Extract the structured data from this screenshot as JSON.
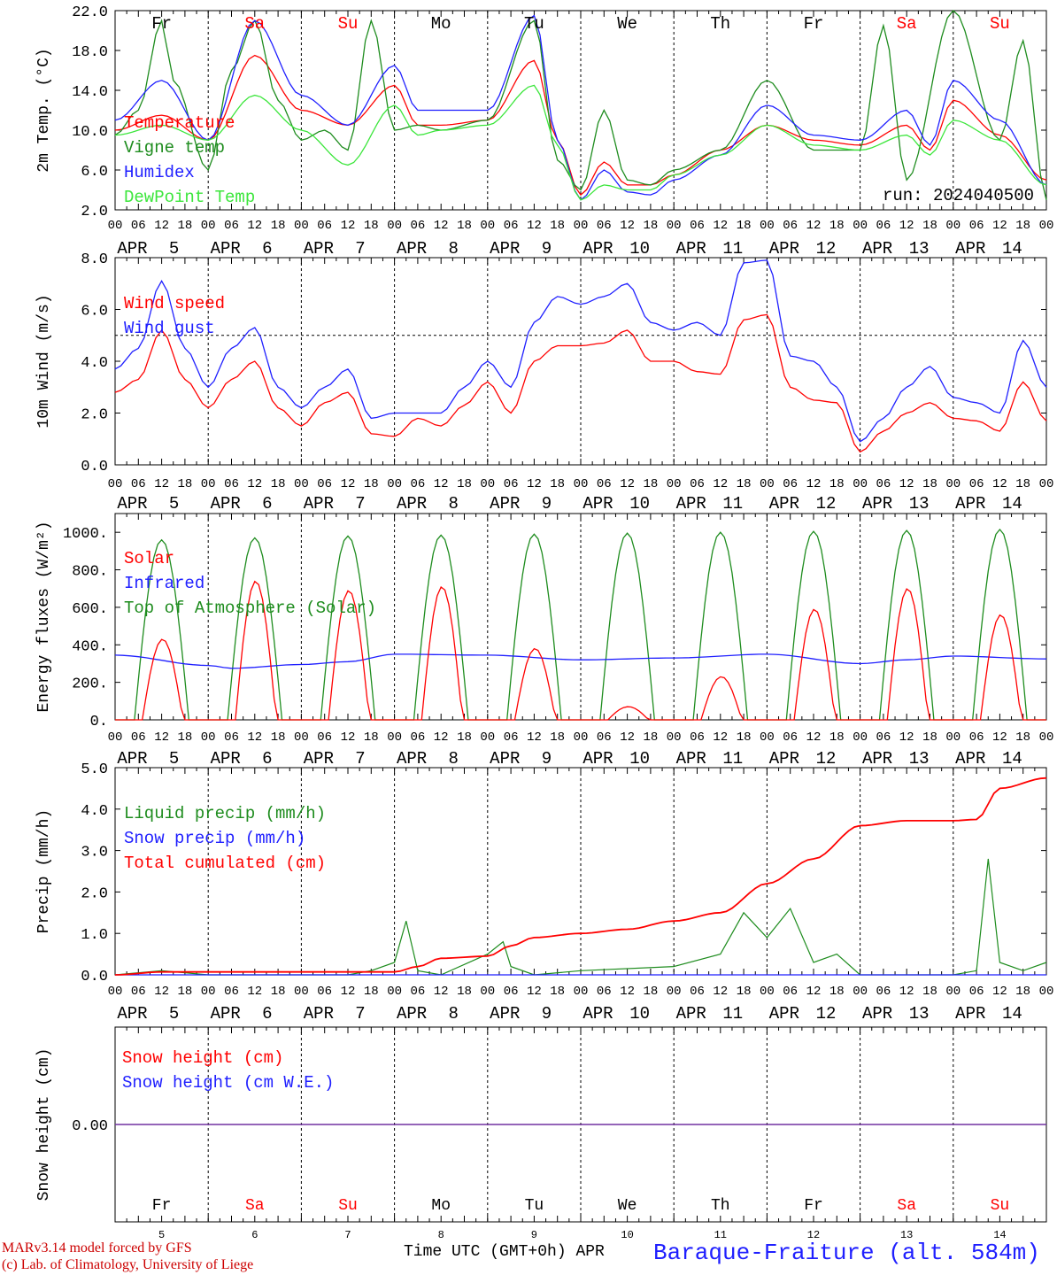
{
  "run_label": "run: 2024040500",
  "footer": {
    "model": "MARv3.14 model forced by GFS",
    "copyright": "(c) Lab. of Climatology, University of Liege",
    "time_label": "Time UTC (GMT+0h)",
    "month": "APR",
    "station": "Baraque-Fraiture (alt. 584m)"
  },
  "days": [
    "Fr",
    "Sa",
    "Su",
    "Mo",
    "Tu",
    "We",
    "Th",
    "Fr",
    "Sa",
    "Su"
  ],
  "weekend_days": [
    1,
    2,
    8,
    9
  ],
  "date_labels": [
    "APR 5",
    "APR 6",
    "APR 7",
    "APR 8",
    "APR 9",
    "APR 10",
    "APR 11",
    "APR 12",
    "APR 13",
    "APR 14"
  ],
  "date_numbers": [
    "5",
    "6",
    "7",
    "8",
    "9",
    "10",
    "11",
    "12",
    "13",
    "14"
  ],
  "hour_labels": [
    "00",
    "06",
    "12",
    "18"
  ],
  "colors": {
    "red": "#ff0000",
    "darkgreen": "#1e8c1e",
    "blue": "#1f1fff",
    "lightgreen": "#3ce63c",
    "purple": "#7030a0"
  },
  "chart_data": [
    {
      "type": "line",
      "ylabel": "2m Temp. (°C)",
      "ylim": [
        2.0,
        22.0
      ],
      "yticks": [
        "22.0",
        "18.0",
        "14.0",
        "10.0",
        "6.0",
        "2.0"
      ],
      "xlim_hours": [
        0,
        240
      ],
      "series": [
        {
          "name": "Temperature",
          "color": "red",
          "x": [
            0,
            12,
            24,
            36,
            48,
            60,
            72,
            78,
            84,
            96,
            108,
            114,
            120,
            126,
            132,
            138,
            144,
            156,
            168,
            180,
            192,
            204,
            210,
            216,
            228,
            240
          ],
          "values": [
            10.0,
            11.5,
            9.0,
            17.5,
            12.0,
            10.5,
            14.5,
            10.5,
            10.5,
            11.0,
            17.0,
            9.0,
            3.5,
            6.8,
            4.5,
            4.5,
            5.5,
            8.0,
            10.5,
            9.0,
            8.5,
            10.5,
            8.0,
            13.0,
            9.5,
            5.0
          ]
        },
        {
          "name": "Vigne temp",
          "color": "darkgreen",
          "x": [
            0,
            6,
            12,
            15,
            24,
            30,
            36,
            42,
            48,
            54,
            60,
            66,
            72,
            78,
            84,
            96,
            108,
            114,
            120,
            126,
            132,
            138,
            144,
            156,
            168,
            180,
            192,
            198,
            204,
            216,
            228,
            234,
            240
          ],
          "values": [
            9.5,
            12.0,
            21.0,
            15.0,
            6.0,
            16.0,
            21.0,
            13.0,
            9.0,
            10.0,
            8.0,
            21.0,
            10.0,
            10.5,
            10.0,
            11.0,
            21.0,
            7.0,
            4.0,
            12.0,
            5.0,
            4.5,
            6.0,
            8.0,
            15.0,
            8.0,
            8.0,
            20.5,
            5.0,
            22.0,
            9.0,
            19.0,
            3.0
          ]
        },
        {
          "name": "Humidex",
          "color": "blue",
          "x": [
            0,
            12,
            24,
            36,
            48,
            60,
            72,
            78,
            84,
            96,
            108,
            114,
            120,
            126,
            132,
            138,
            144,
            156,
            168,
            180,
            192,
            204,
            210,
            216,
            228,
            240
          ],
          "values": [
            11.0,
            15.0,
            9.0,
            21.0,
            13.5,
            10.5,
            16.5,
            12.0,
            12.0,
            12.0,
            21.5,
            9.0,
            3.0,
            6.0,
            3.8,
            3.5,
            5.0,
            7.5,
            12.5,
            9.5,
            9.0,
            12.0,
            8.5,
            15.0,
            11.0,
            4.5
          ]
        },
        {
          "name": "DewPoint Temp",
          "color": "lightgreen",
          "x": [
            0,
            12,
            24,
            36,
            48,
            60,
            72,
            78,
            84,
            96,
            108,
            114,
            120,
            126,
            132,
            138,
            144,
            156,
            168,
            180,
            192,
            204,
            210,
            216,
            228,
            240
          ],
          "values": [
            9.5,
            10.5,
            9.0,
            13.5,
            10.0,
            6.5,
            12.5,
            9.5,
            10.0,
            10.5,
            14.5,
            8.5,
            3.0,
            4.5,
            4.0,
            4.0,
            5.5,
            7.5,
            10.5,
            8.5,
            8.0,
            9.5,
            7.5,
            11.0,
            9.0,
            4.5
          ]
        }
      ]
    },
    {
      "type": "line",
      "ylabel": "10m Wind (m/s)",
      "ylim": [
        0.0,
        8.0
      ],
      "yticks": [
        "8.0",
        "6.0",
        "4.0",
        "2.0",
        "0.0"
      ],
      "reference_line": 5.0,
      "series": [
        {
          "name": "Wind speed",
          "color": "red",
          "x": [
            0,
            6,
            12,
            18,
            24,
            30,
            36,
            42,
            48,
            54,
            60,
            66,
            72,
            78,
            84,
            90,
            96,
            102,
            108,
            114,
            120,
            126,
            132,
            138,
            144,
            150,
            156,
            162,
            168,
            174,
            180,
            186,
            192,
            198,
            204,
            210,
            216,
            222,
            228,
            234,
            240
          ],
          "values": [
            2.8,
            3.3,
            5.2,
            3.3,
            2.2,
            3.3,
            4.0,
            2.2,
            1.5,
            2.4,
            2.8,
            1.2,
            1.1,
            1.8,
            1.5,
            2.3,
            3.2,
            2.0,
            4.0,
            4.6,
            4.6,
            4.7,
            5.2,
            4.0,
            4.0,
            3.6,
            3.5,
            5.6,
            5.8,
            3.0,
            2.5,
            2.4,
            0.5,
            1.3,
            2.0,
            2.4,
            1.8,
            1.7,
            1.3,
            3.2,
            1.7
          ]
        },
        {
          "name": "Wind gust",
          "color": "blue",
          "x": [
            0,
            6,
            12,
            18,
            24,
            30,
            36,
            42,
            48,
            54,
            60,
            66,
            72,
            78,
            84,
            90,
            96,
            102,
            108,
            114,
            120,
            126,
            132,
            138,
            144,
            150,
            156,
            162,
            168,
            174,
            180,
            186,
            192,
            198,
            204,
            210,
            216,
            222,
            228,
            234,
            240
          ],
          "values": [
            3.7,
            4.5,
            7.1,
            4.5,
            3.0,
            4.5,
            5.3,
            3.0,
            2.2,
            3.0,
            3.7,
            1.8,
            2.0,
            2.0,
            2.0,
            3.0,
            4.0,
            3.0,
            5.5,
            6.5,
            6.2,
            6.5,
            7.0,
            5.5,
            5.2,
            5.5,
            5.0,
            7.8,
            7.9,
            4.2,
            4.0,
            3.0,
            0.9,
            1.8,
            3.0,
            3.8,
            2.6,
            2.4,
            2.0,
            4.8,
            3.0
          ]
        }
      ]
    },
    {
      "type": "line",
      "ylabel": "Energy fluxes (W/m²)",
      "ylim": [
        0,
        1100
      ],
      "yticks": [
        "1000.",
        "800.",
        "600.",
        "400.",
        "200.",
        "0."
      ],
      "series": [
        {
          "name": "Solar",
          "color": "red",
          "peaks": [
            430,
            740,
            690,
            710,
            380,
            70,
            230,
            590,
            700,
            560
          ]
        },
        {
          "name": "Infrared",
          "color": "blue",
          "x": [
            0,
            24,
            30,
            48,
            60,
            72,
            96,
            120,
            144,
            168,
            192,
            204,
            216,
            240
          ],
          "values": [
            345,
            290,
            275,
            295,
            310,
            350,
            345,
            320,
            330,
            350,
            300,
            320,
            340,
            325
          ]
        },
        {
          "name": "Top of Atmosphere (Solar)",
          "color": "darkgreen",
          "peaks": [
            960,
            970,
            980,
            985,
            990,
            995,
            1000,
            1005,
            1010,
            1015
          ]
        }
      ]
    },
    {
      "type": "line",
      "ylabel": "Precip (mm/h)",
      "ylim": [
        0.0,
        5.0
      ],
      "yticks": [
        "5.0",
        "4.0",
        "3.0",
        "2.0",
        "1.0",
        "0.0"
      ],
      "series": [
        {
          "name": "Liquid precip (mm/h)",
          "color": "darkgreen",
          "x": [
            0,
            12,
            24,
            60,
            66,
            72,
            75,
            78,
            84,
            96,
            100,
            102,
            108,
            120,
            144,
            156,
            162,
            168,
            174,
            180,
            186,
            192,
            216,
            222,
            225,
            228,
            234,
            240
          ],
          "values": [
            0,
            0.1,
            0,
            0,
            0.1,
            0.3,
            1.3,
            0.1,
            0,
            0.5,
            0.8,
            0.2,
            0,
            0.1,
            0.2,
            0.5,
            1.5,
            0.9,
            1.6,
            0.3,
            0.5,
            0,
            0,
            0.1,
            2.8,
            0.3,
            0.1,
            0.3
          ]
        },
        {
          "name": "Snow precip (mm/h)",
          "color": "blue",
          "x": [
            0,
            240
          ],
          "values": [
            0,
            0
          ]
        },
        {
          "name": "Total cumulated (cm)",
          "color": "red",
          "x": [
            0,
            12,
            72,
            78,
            84,
            96,
            102,
            108,
            120,
            132,
            144,
            156,
            168,
            180,
            192,
            204,
            216,
            222,
            228,
            240
          ],
          "values": [
            0,
            0.07,
            0.07,
            0.2,
            0.4,
            0.45,
            0.7,
            0.9,
            1.0,
            1.1,
            1.3,
            1.5,
            2.2,
            2.8,
            3.6,
            3.72,
            3.72,
            3.75,
            4.5,
            4.75
          ]
        }
      ]
    },
    {
      "type": "line",
      "ylabel": "Snow height (cm)",
      "yticks": [
        "0.00"
      ],
      "series": [
        {
          "name": "Snow height (cm)",
          "color": "red",
          "x": [
            0,
            240
          ],
          "values": [
            0,
            0
          ]
        },
        {
          "name": "Snow height (cm W.E.)",
          "color": "blue",
          "x": [
            0,
            240
          ],
          "values": [
            0,
            0
          ]
        }
      ]
    }
  ]
}
